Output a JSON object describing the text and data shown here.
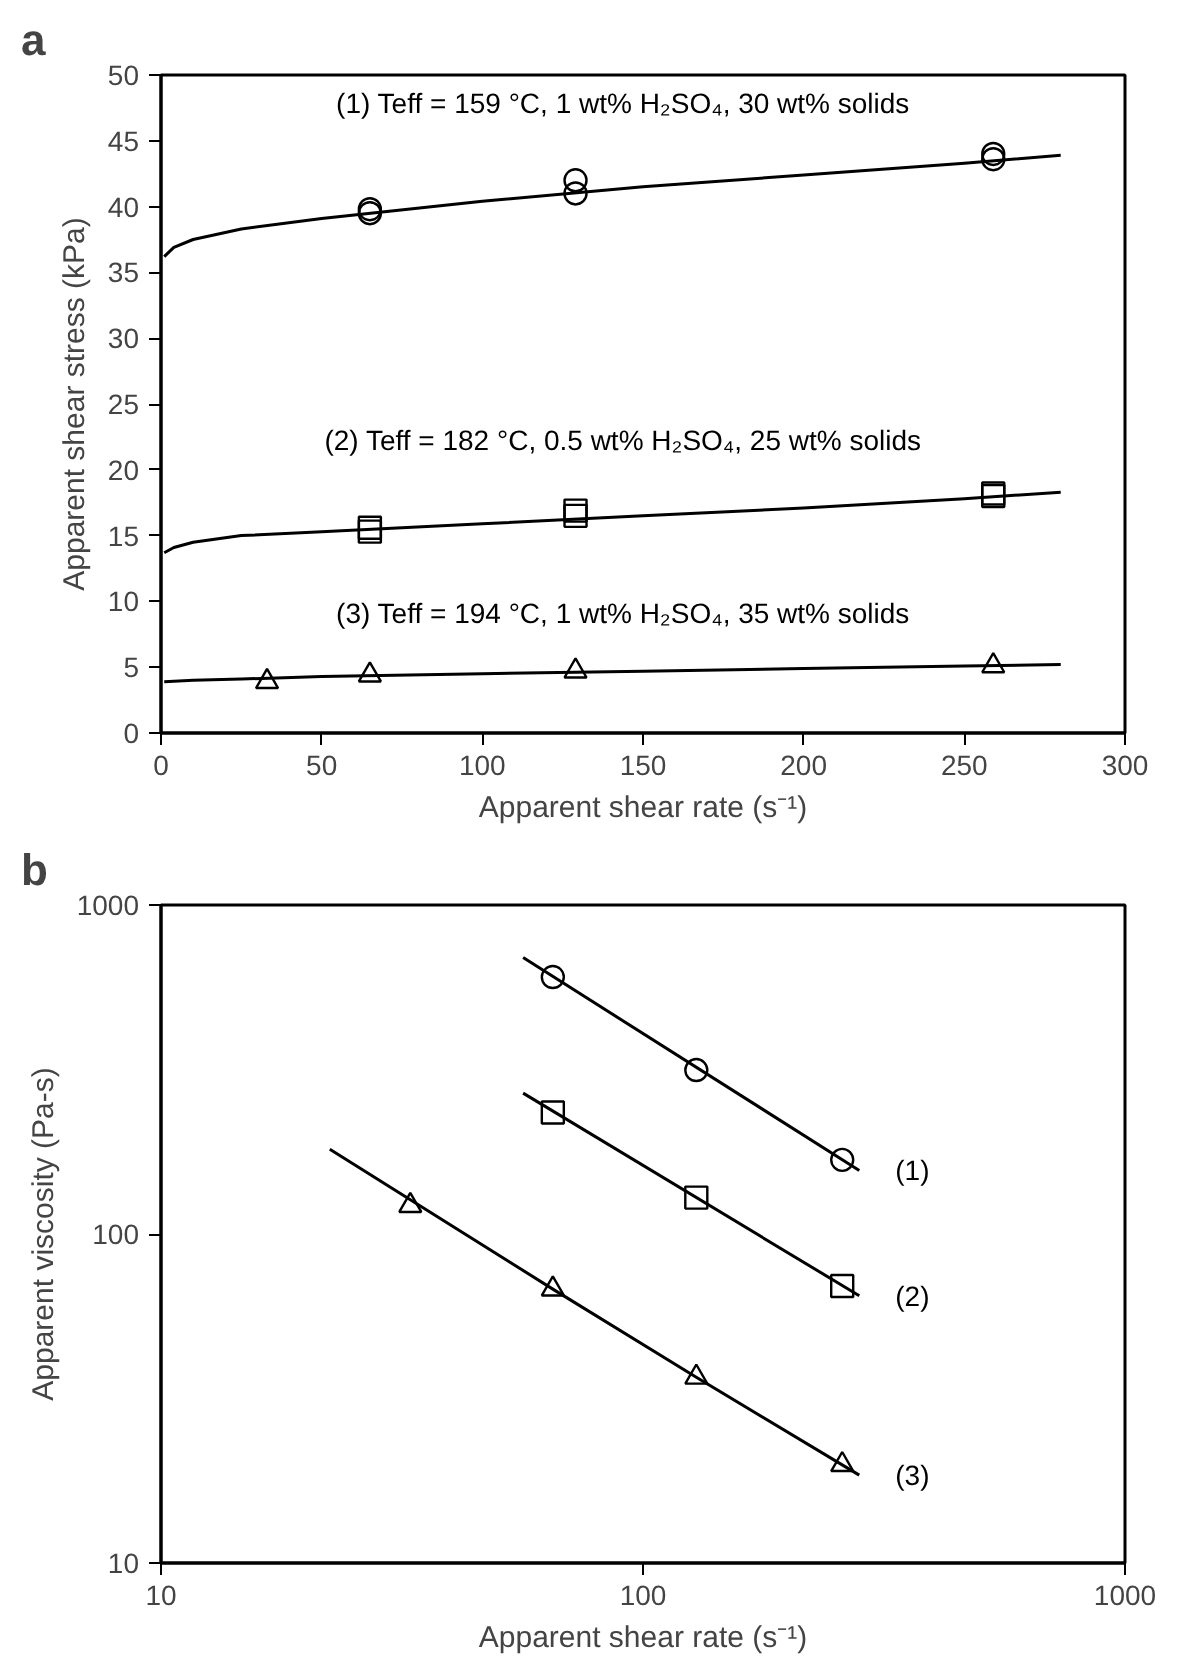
{
  "chart_data": [
    {
      "type": "scatter",
      "title": "a",
      "xlabel": "Apparent shear rate (s⁻¹)",
      "ylabel": "Apparent shear stress (kPa)",
      "xlim": [
        0,
        300
      ],
      "xticks": [
        0,
        50,
        100,
        150,
        200,
        250,
        300
      ],
      "ylim": [
        0,
        50
      ],
      "yticks": [
        0,
        5,
        10,
        15,
        20,
        25,
        30,
        35,
        40,
        45,
        50
      ],
      "grid": false,
      "series": [
        {
          "marker": "circle",
          "color": "#000000",
          "x": [
            65,
            65,
            129,
            129,
            259,
            259
          ],
          "values": [
            39.5,
            39.8,
            41,
            42,
            43.6,
            44
          ]
        },
        {
          "marker": "square",
          "color": "#000000",
          "x": [
            65,
            65,
            129,
            129,
            259,
            259
          ],
          "values": [
            15.3,
            15.6,
            16.5,
            16.9,
            18,
            18.2
          ]
        },
        {
          "marker": "triangle",
          "color": "#000000",
          "x": [
            33,
            65,
            129,
            259
          ],
          "values": [
            3.9,
            4.4,
            4.7,
            5.1
          ]
        },
        {
          "type": "line",
          "marker": "none",
          "name": "(1) Teff = 159 °C, 1 wt% H₂SO₄, 30 wt% solids",
          "color": "#000000",
          "x": [
            1,
            4,
            10,
            25,
            50,
            100,
            150,
            200,
            250,
            280
          ],
          "values": [
            36.2,
            36.9,
            37.5,
            38.3,
            39.1,
            40.4,
            41.5,
            42.4,
            43.3,
            43.9
          ]
        },
        {
          "type": "line",
          "marker": "none",
          "name": "(2) Teff = 182 °C, 0.5 wt% H₂SO₄, 25 wt% solids",
          "color": "#000000",
          "x": [
            1,
            4,
            10,
            25,
            50,
            100,
            150,
            200,
            250,
            280
          ],
          "values": [
            13.7,
            14.1,
            14.5,
            15.0,
            15.3,
            15.9,
            16.5,
            17.1,
            17.8,
            18.3
          ]
        },
        {
          "type": "line",
          "marker": "none",
          "name": "(3) Teff = 194 °C, 1 wt% H₂SO₄, 35 wt% solids",
          "color": "#000000",
          "x": [
            1,
            10,
            25,
            50,
            100,
            150,
            200,
            250,
            280
          ],
          "values": [
            3.9,
            4.0,
            4.1,
            4.3,
            4.5,
            4.7,
            4.9,
            5.1,
            5.2
          ]
        }
      ]
    },
    {
      "type": "scatter",
      "title": "b",
      "xlabel": "Apparent shear rate (s⁻¹)",
      "ylabel": "Apparent viscosity (Pa-s)",
      "log": "xy",
      "xlim": [
        10,
        1000
      ],
      "xticks": [
        10,
        100,
        1000
      ],
      "ylim": [
        10,
        1000
      ],
      "yticks": [
        10,
        100,
        1000
      ],
      "grid": false,
      "series": [
        {
          "marker": "circle",
          "color": "#000000",
          "x": [
            65,
            129,
            259
          ],
          "values": [
            604,
            315,
            168
          ]
        },
        {
          "marker": "square",
          "color": "#000000",
          "x": [
            65,
            129,
            259
          ],
          "values": [
            234,
            129,
            69.5
          ]
        },
        {
          "marker": "triangle",
          "color": "#000000",
          "x": [
            32.9,
            65,
            129,
            259
          ],
          "values": [
            122,
            68,
            36.7,
            19.9
          ]
        },
        {
          "type": "line",
          "marker": "none",
          "name": "(1)",
          "color": "#000000",
          "x": [
            56.4,
            281
          ],
          "values": [
            692,
            156
          ]
        },
        {
          "type": "line",
          "marker": "none",
          "name": "(2)",
          "color": "#000000",
          "x": [
            56.4,
            281
          ],
          "values": [
            268,
            64.9
          ]
        },
        {
          "type": "line",
          "marker": "none",
          "name": "(3)",
          "color": "#000000",
          "x": [
            22.4,
            65,
            129,
            281
          ],
          "values": [
            181,
            68,
            36.7,
            18.5
          ]
        }
      ]
    }
  ]
}
